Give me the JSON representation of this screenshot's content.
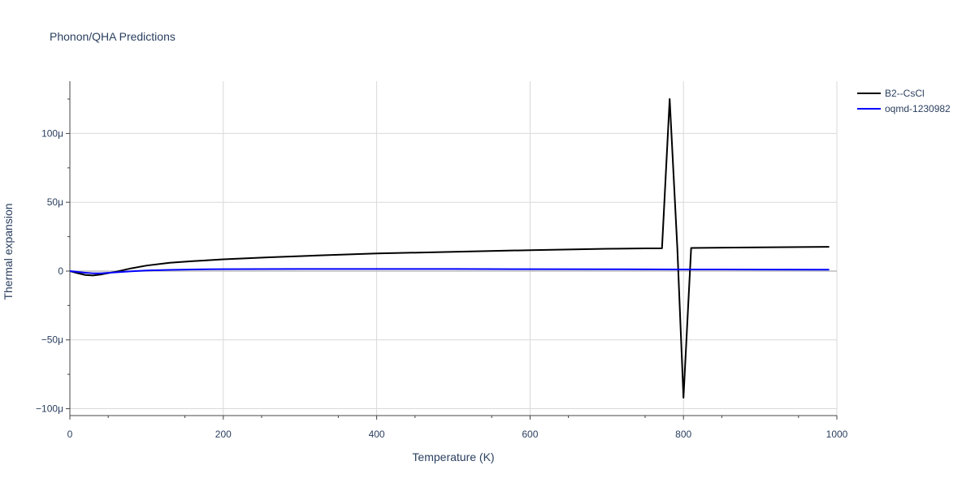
{
  "chart_data": {
    "type": "line",
    "title": "Phonon/QHA Predictions",
    "xlabel": "Temperature (K)",
    "ylabel": "Thermal expansion",
    "xlim": [
      0,
      1000
    ],
    "ylim": [
      -0.000105,
      0.000138
    ],
    "x_ticks": [
      0,
      200,
      400,
      600,
      800,
      1000
    ],
    "x_tick_labels": [
      "0",
      "200",
      "400",
      "600",
      "800",
      "1000"
    ],
    "y_ticks": [
      -0.0001,
      -5e-05,
      0,
      5e-05,
      0.0001
    ],
    "y_tick_labels": [
      "−100μ",
      "−50μ",
      "0",
      "50μ",
      "100μ"
    ],
    "grid": true,
    "legend_position": "top-right",
    "series": [
      {
        "name": "B2--CsCl",
        "color": "#000000",
        "x": [
          0,
          10,
          20,
          30,
          40,
          50,
          60,
          80,
          100,
          130,
          160,
          200,
          260,
          330,
          400,
          500,
          600,
          700,
          750,
          772,
          782,
          792,
          800,
          810,
          900,
          990
        ],
        "y": [
          0,
          -1.5e-06,
          -2.8e-06,
          -3.2e-06,
          -2.5e-06,
          -1.5e-06,
          -5e-07,
          2e-06,
          4e-06,
          6e-06,
          7.2e-06,
          8.5e-06,
          1e-05,
          1.15e-05,
          1.28e-05,
          1.4e-05,
          1.52e-05,
          1.62e-05,
          1.65e-05,
          1.66e-05,
          0.000125,
          1.66e-05,
          -9.2e-05,
          1.68e-05,
          1.72e-05,
          1.76e-05
        ]
      },
      {
        "name": "oqmd-1230982",
        "color": "#0000ff",
        "x": [
          0,
          10,
          20,
          30,
          40,
          50,
          60,
          80,
          100,
          130,
          160,
          200,
          300,
          400,
          500,
          600,
          700,
          800,
          900,
          990
        ],
        "y": [
          0,
          -6e-07,
          -1.2e-06,
          -1.6e-06,
          -1.6e-06,
          -1.3e-06,
          -9e-07,
          -2e-07,
          4e-07,
          9e-07,
          1.2e-06,
          1.4e-06,
          1.5e-06,
          1.5e-06,
          1.5e-06,
          1.4e-06,
          1.3e-06,
          1.2e-06,
          1.1e-06,
          1e-06
        ]
      }
    ]
  }
}
